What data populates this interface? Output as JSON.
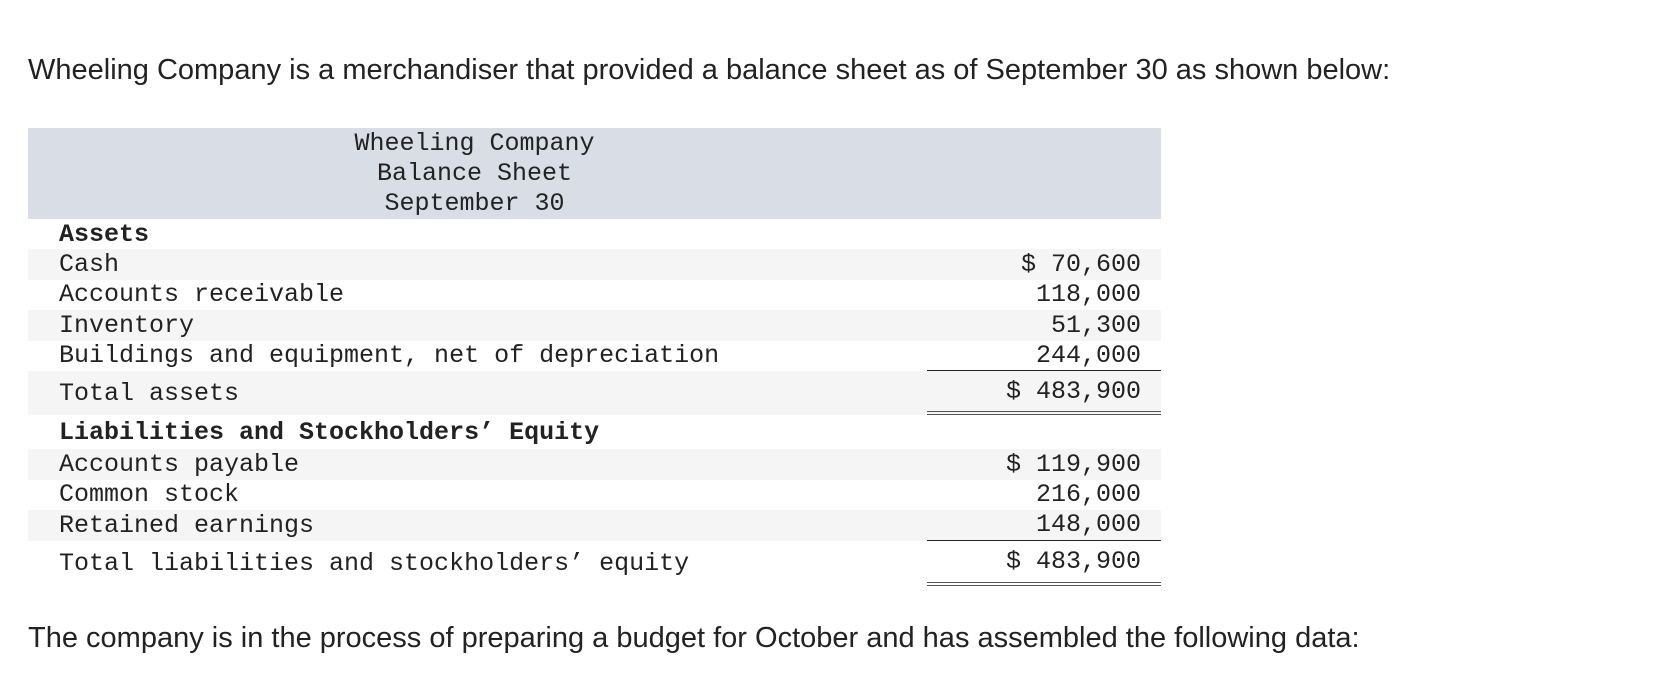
{
  "intro": "Wheeling Company is a merchandiser that provided a balance sheet as of September 30 as shown below:",
  "table": {
    "header": [
      "Wheeling Company",
      "Balance Sheet",
      "September 30"
    ],
    "assets": {
      "heading": "Assets",
      "rows": [
        [
          "Cash",
          "$ 70,600"
        ],
        [
          "Accounts receivable",
          "118,000"
        ],
        [
          "Inventory",
          "51,300"
        ],
        [
          "Buildings and equipment, net of depreciation",
          "244,000"
        ]
      ],
      "total": [
        "Total assets",
        "$ 483,900"
      ]
    },
    "liabilities": {
      "heading": "Liabilities and Stockholders’ Equity",
      "rows": [
        [
          "Accounts payable",
          "$ 119,900"
        ],
        [
          "Common stock",
          "216,000"
        ],
        [
          "Retained earnings",
          "148,000"
        ]
      ],
      "total": [
        "Total liabilities and stockholders’ equity",
        "$ 483,900"
      ]
    }
  },
  "outro": "The company is in the process of preparing a budget for October and has assembled the following data:"
}
